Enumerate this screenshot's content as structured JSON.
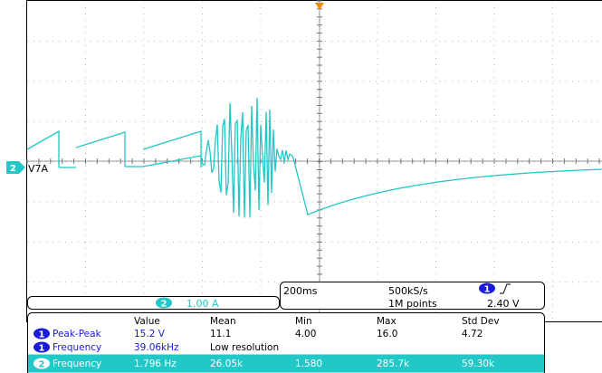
{
  "colors": {
    "ch1": "#1a1adb",
    "ch2": "#22c7c7",
    "ch2_dark": "#0d7f7f",
    "grid": "#b8b8b8",
    "border": "#000000"
  },
  "channel_marker": {
    "number": "2",
    "label": "V7A"
  },
  "trigger_marker_icon": "trigger-position-arrow-icon",
  "ch2_scale": {
    "badge": "2",
    "value": "1.00 A"
  },
  "timebase": {
    "time_per_div": "200ms",
    "sample_rate": "500kS/s",
    "record_length": "1M points",
    "trigger_badge": "1",
    "trigger_slope_icon": "rising-edge-icon",
    "trigger_level": "2.40 V"
  },
  "measurements": {
    "headers": [
      "Value",
      "Mean",
      "Min",
      "Max",
      "Std Dev"
    ],
    "rows": [
      {
        "badge": "1",
        "name": "Peak-Peak",
        "channel": "ch1",
        "cells": [
          "15.2 V",
          "11.1",
          "4.00",
          "16.0",
          "4.72"
        ]
      },
      {
        "badge": "1",
        "name": "Frequency",
        "channel": "ch1",
        "cells": [
          "39.06kHz",
          "Low resolution",
          "",
          "",
          ""
        ]
      },
      {
        "badge": "2",
        "name": "Frequency",
        "channel": "ch2",
        "cells": [
          "1.796 Hz",
          "26.05k",
          "1.580",
          "285.7k",
          "59.30k"
        ]
      }
    ]
  }
}
